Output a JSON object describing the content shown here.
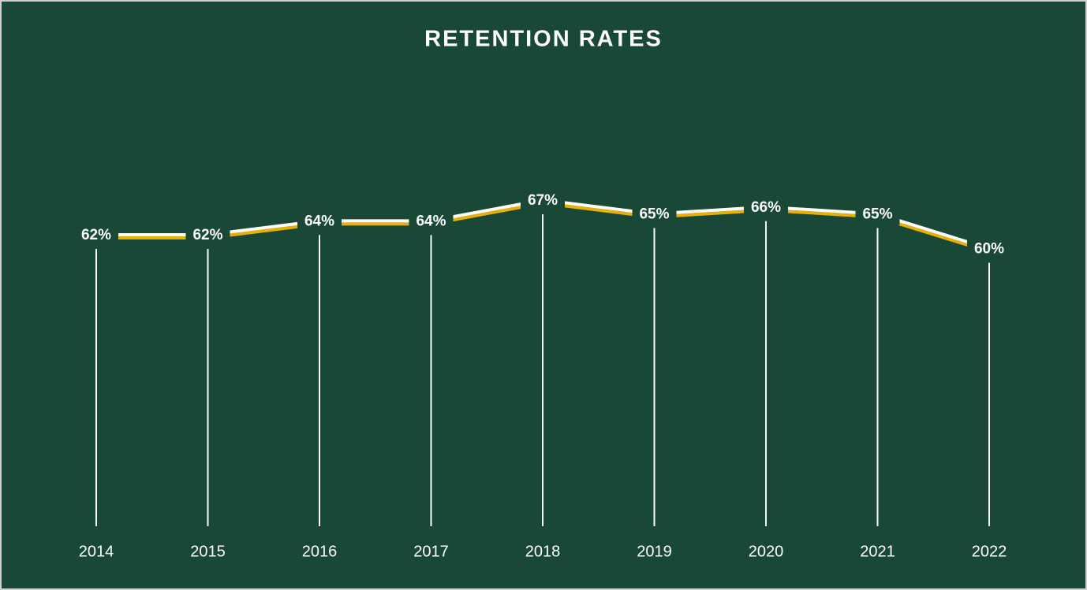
{
  "chart_data": {
    "type": "line",
    "title": "RETENTION RATES",
    "categories": [
      "2014",
      "2015",
      "2016",
      "2017",
      "2018",
      "2019",
      "2020",
      "2021",
      "2022"
    ],
    "values": [
      62,
      62,
      64,
      64,
      67,
      65,
      66,
      65,
      60
    ],
    "value_labels": [
      "62%",
      "62%",
      "64%",
      "64%",
      "67%",
      "65%",
      "66%",
      "65%",
      "60%"
    ],
    "color": "#ffffff",
    "shadow_color": "#e8b004",
    "background": "#1a4837",
    "ylim": [
      20,
      70
    ],
    "drop_lines": true
  }
}
